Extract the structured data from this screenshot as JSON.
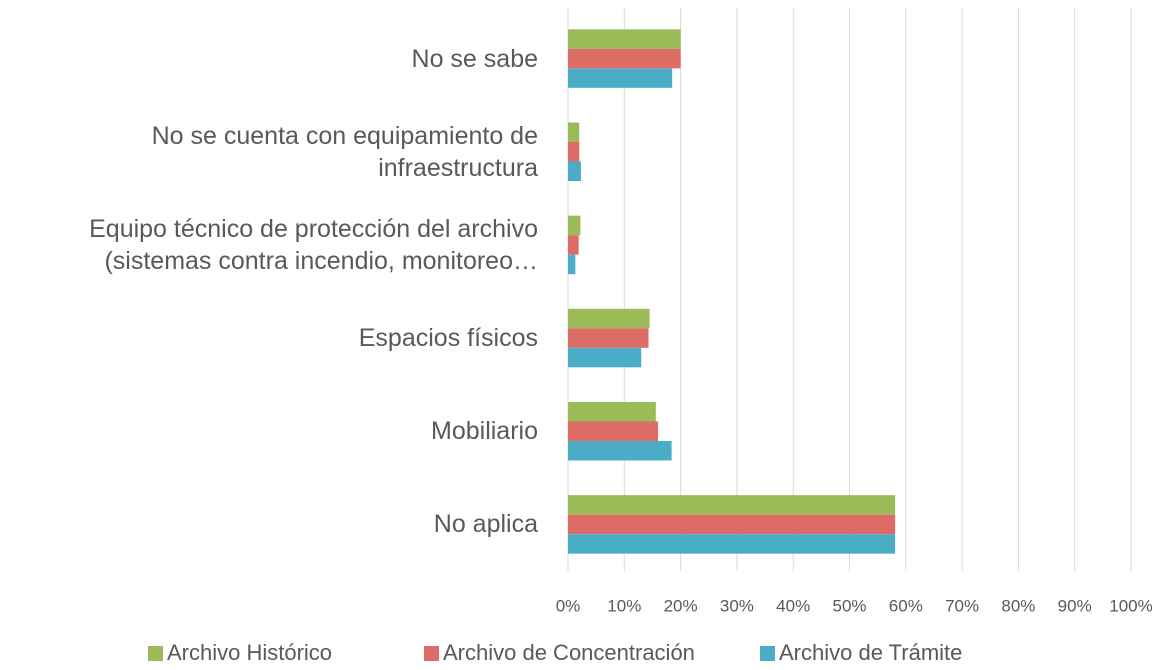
{
  "chart_data": {
    "type": "bar",
    "orientation": "horizontal",
    "categories": [
      "No se sabe",
      "No se cuenta con equipamiento de infraestructura",
      "Equipo técnico de protección del archivo (sistemas contra incendio, monitoreo…",
      "Espacios físicos",
      "Mobiliario",
      "No aplica"
    ],
    "series": [
      {
        "name": "Archivo Histórico",
        "color": "#9bbb59",
        "values": [
          20,
          2,
          2.2,
          14.5,
          15.6,
          58.1
        ]
      },
      {
        "name": "Archivo de Concentración",
        "color": "#dd6b66",
        "values": [
          20,
          2,
          1.9,
          14.3,
          16,
          58.1
        ]
      },
      {
        "name": "Archivo de Trámite",
        "color": "#4bacc6",
        "values": [
          18.5,
          2.3,
          1.3,
          13,
          18.4,
          58.1
        ]
      }
    ],
    "xlim": [
      0,
      100
    ],
    "xticks": [
      {
        "value": 0,
        "label": "0%"
      },
      {
        "value": 10,
        "label": "10%"
      },
      {
        "value": 20,
        "label": "20%"
      },
      {
        "value": 30,
        "label": "30%"
      },
      {
        "value": 40,
        "label": "40%"
      },
      {
        "value": 50,
        "label": "50%"
      },
      {
        "value": 60,
        "label": "60%"
      },
      {
        "value": 70,
        "label": "70%"
      },
      {
        "value": 80,
        "label": "80%"
      },
      {
        "value": 90,
        "label": "90%"
      },
      {
        "value": 100,
        "label": "100%"
      }
    ],
    "grid": true,
    "legend": "bottom"
  }
}
